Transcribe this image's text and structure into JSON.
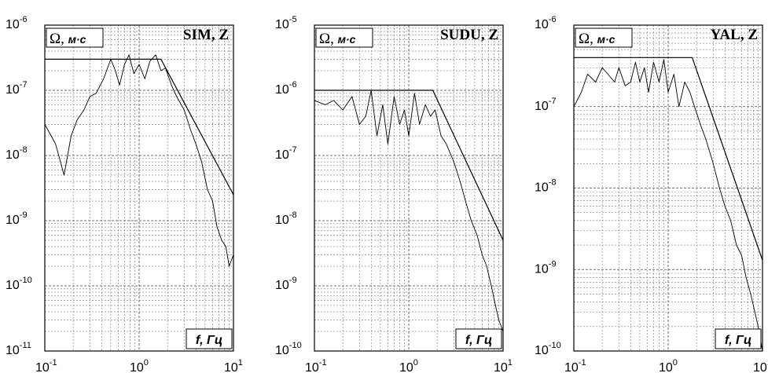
{
  "chart_data": [
    {
      "type": "line",
      "title": "SIM, Z",
      "ylabel": "Ω, м·с",
      "xlabel": "f, Гц",
      "xscale": "log",
      "yscale": "log",
      "xlim": [
        0.1,
        10
      ],
      "ylim": [
        1e-11,
        1e-06
      ],
      "grid": true,
      "x_ticks": [
        {
          "mant": "10",
          "exp": "-1"
        },
        {
          "mant": "10",
          "exp": "0"
        },
        {
          "mant": "10",
          "exp": "1"
        }
      ],
      "y_ticks": [
        {
          "mant": "10",
          "exp": "-11"
        },
        {
          "mant": "10",
          "exp": "-10"
        },
        {
          "mant": "10",
          "exp": "-9"
        },
        {
          "mant": "10",
          "exp": "-8"
        },
        {
          "mant": "10",
          "exp": "-7"
        },
        {
          "mant": "10",
          "exp": "-6"
        }
      ],
      "series": [
        {
          "role": "model",
          "x": [
            0.1,
            1.7,
            10
          ],
          "y": [
            3e-07,
            3e-07,
            2.5e-09
          ]
        },
        {
          "role": "spectrum",
          "x": [
            0.1,
            0.13,
            0.16,
            0.19,
            0.22,
            0.26,
            0.3,
            0.35,
            0.42,
            0.5,
            0.56,
            0.62,
            0.7,
            0.78,
            0.88,
            1.0,
            1.15,
            1.3,
            1.5,
            1.7,
            1.9,
            2.2,
            2.5,
            3.0,
            3.5,
            4.0,
            4.6,
            5.3,
            6.0,
            6.7,
            7.5,
            8.3,
            9.0,
            10.0
          ],
          "y": [
            3e-08,
            1.5e-08,
            5e-09,
            2e-08,
            3.5e-08,
            5e-08,
            8e-08,
            9e-08,
            1.5e-07,
            3e-07,
            2e-07,
            1.2e-07,
            2.5e-07,
            3.5e-07,
            1.8e-07,
            2.5e-07,
            1.5e-07,
            2.8e-07,
            3.5e-07,
            2e-07,
            2.2e-07,
            1.2e-07,
            8e-08,
            5e-08,
            2.5e-08,
            1.5e-08,
            8e-09,
            3e-09,
            2e-09,
            8e-10,
            5e-10,
            4e-10,
            2e-10,
            3e-10
          ]
        }
      ]
    },
    {
      "type": "line",
      "title": "SUDU, Z",
      "ylabel": "Ω, м·с",
      "xlabel": "f, Гц",
      "xscale": "log",
      "yscale": "log",
      "xlim": [
        0.1,
        10
      ],
      "ylim": [
        1e-10,
        1e-05
      ],
      "grid": true,
      "x_ticks": [
        {
          "mant": "10",
          "exp": "-1"
        },
        {
          "mant": "10",
          "exp": "0"
        },
        {
          "mant": "10",
          "exp": "1"
        }
      ],
      "y_ticks": [
        {
          "mant": "10",
          "exp": "-10"
        },
        {
          "mant": "10",
          "exp": "-9"
        },
        {
          "mant": "10",
          "exp": "-8"
        },
        {
          "mant": "10",
          "exp": "-7"
        },
        {
          "mant": "10",
          "exp": "-6"
        },
        {
          "mant": "10",
          "exp": "-5"
        }
      ],
      "series": [
        {
          "role": "model",
          "x": [
            0.1,
            1.8,
            10
          ],
          "y": [
            1e-06,
            1e-06,
            5e-09
          ]
        },
        {
          "role": "spectrum",
          "x": [
            0.1,
            0.13,
            0.16,
            0.2,
            0.25,
            0.3,
            0.35,
            0.4,
            0.46,
            0.53,
            0.6,
            0.7,
            0.8,
            0.9,
            1.0,
            1.15,
            1.3,
            1.5,
            1.7,
            1.9,
            2.2,
            2.5,
            3.0,
            3.5,
            4.0,
            4.6,
            5.3,
            6.0,
            6.7,
            7.5,
            8.3,
            9.0,
            10.0
          ],
          "y": [
            7e-07,
            6e-07,
            7e-07,
            5e-07,
            8e-07,
            3e-07,
            4e-07,
            1e-06,
            2e-07,
            6e-07,
            1.5e-07,
            8e-07,
            3e-07,
            5e-07,
            2e-07,
            9e-07,
            3e-07,
            6e-07,
            4e-07,
            5e-07,
            2e-07,
            1.5e-07,
            8e-08,
            4e-08,
            2e-08,
            1e-08,
            6e-09,
            3e-09,
            2e-09,
            1e-09,
            5e-10,
            3e-10,
            2e-10
          ]
        }
      ]
    },
    {
      "type": "line",
      "title": "YAL, Z",
      "ylabel": "Ω, м·с",
      "xlabel": "f, Гц",
      "xscale": "log",
      "yscale": "log",
      "xlim": [
        0.1,
        10
      ],
      "ylim": [
        1e-10,
        1e-06
      ],
      "grid": true,
      "x_ticks": [
        {
          "mant": "10",
          "exp": "-1"
        },
        {
          "mant": "10",
          "exp": "0"
        },
        {
          "mant": "10",
          "exp": "1"
        }
      ],
      "y_ticks": [
        {
          "mant": "10",
          "exp": "-10"
        },
        {
          "mant": "10",
          "exp": "-9"
        },
        {
          "mant": "10",
          "exp": "-8"
        },
        {
          "mant": "10",
          "exp": "-7"
        },
        {
          "mant": "10",
          "exp": "-6"
        }
      ],
      "series": [
        {
          "role": "model",
          "x": [
            0.1,
            1.8,
            10
          ],
          "y": [
            4e-07,
            4e-07,
            1.3e-09
          ]
        },
        {
          "role": "spectrum",
          "x": [
            0.1,
            0.12,
            0.14,
            0.17,
            0.2,
            0.23,
            0.27,
            0.3,
            0.35,
            0.4,
            0.45,
            0.5,
            0.56,
            0.62,
            0.7,
            0.8,
            0.9,
            1.0,
            1.15,
            1.3,
            1.5,
            1.7,
            1.9,
            2.2,
            2.5,
            3.0,
            3.5,
            4.0,
            4.6,
            5.3,
            6.0,
            6.7,
            7.5,
            8.3,
            9.0,
            10.0
          ],
          "y": [
            1e-07,
            1.5e-07,
            2.5e-07,
            2e-07,
            3e-07,
            2.5e-07,
            2e-07,
            3e-07,
            1.8e-07,
            2e-07,
            3.5e-07,
            2e-07,
            3e-07,
            1.5e-07,
            3.5e-07,
            2e-07,
            3.8e-07,
            1.5e-07,
            2.5e-07,
            1e-07,
            2e-07,
            1.5e-07,
            1e-07,
            6e-08,
            4e-08,
            2e-08,
            1e-08,
            6e-09,
            4e-09,
            2e-09,
            1.5e-09,
            8e-10,
            5e-10,
            3e-10,
            2e-10,
            1e-10
          ]
        }
      ]
    }
  ]
}
